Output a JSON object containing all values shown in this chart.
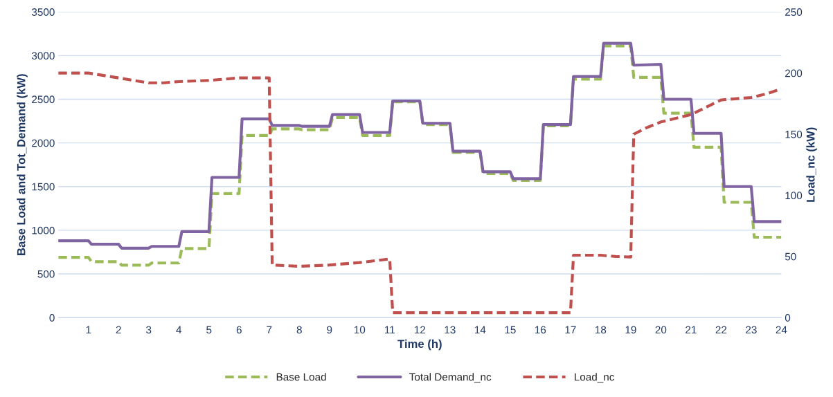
{
  "chart_data": {
    "type": "line",
    "xlabel": "Time (h)",
    "ylabel": "Base Load and Tot_Demand (kW)",
    "y2label": "Load_nc (kW)",
    "xlim": [
      0,
      24
    ],
    "xticks": [
      1,
      2,
      3,
      4,
      5,
      6,
      7,
      8,
      9,
      10,
      11,
      12,
      13,
      14,
      15,
      16,
      17,
      18,
      19,
      20,
      21,
      22,
      23,
      24
    ],
    "ylim": [
      0,
      3500
    ],
    "yticks": [
      0,
      500,
      1000,
      1500,
      2000,
      2500,
      3000,
      3500
    ],
    "y2lim": [
      0,
      250
    ],
    "y2ticks": [
      0,
      50,
      100,
      150,
      200,
      250
    ],
    "grid": "y",
    "legend": "bottom",
    "marker": "none",
    "x": [
      0,
      1,
      1.1,
      2,
      2.1,
      3,
      3.1,
      4,
      4.1,
      5,
      5.1,
      6,
      6.1,
      7,
      7.1,
      8,
      8.1,
      9,
      9.1,
      10,
      10.1,
      11,
      11.1,
      12,
      12.1,
      13,
      13.1,
      14,
      14.1,
      15,
      15.1,
      16,
      16.1,
      17,
      17.1,
      18,
      18.1,
      19,
      19.1,
      20,
      20.1,
      21,
      21.1,
      22,
      22.1,
      23,
      23.1,
      24
    ],
    "series": [
      {
        "name": "Base Load",
        "color": "#9bbb59",
        "line_style": "dashed",
        "values": [
          690,
          690,
          640,
          640,
          600,
          600,
          625,
          625,
          790,
          790,
          1420,
          1420,
          2085,
          2085,
          2160,
          2160,
          2150,
          2150,
          2290,
          2290,
          2085,
          2085,
          2470,
          2470,
          2210,
          2210,
          1890,
          1890,
          1650,
          1650,
          1570,
          1570,
          2195,
          2195,
          2730,
          2730,
          3110,
          3110,
          2750,
          2750,
          2340,
          2340,
          1950,
          1950,
          1320,
          1320,
          920,
          920
        ]
      },
      {
        "name": "Total Demand_nc",
        "color": "#8064a2",
        "line_style": "solid",
        "values": [
          880,
          880,
          840,
          840,
          795,
          795,
          815,
          815,
          985,
          985,
          1605,
          1605,
          2275,
          2275,
          2200,
          2200,
          2190,
          2190,
          2325,
          2325,
          2120,
          2120,
          2480,
          2480,
          2225,
          2225,
          1905,
          1905,
          1670,
          1670,
          1590,
          1590,
          2210,
          2210,
          2760,
          2760,
          3140,
          3140,
          2890,
          2900,
          2500,
          2500,
          2110,
          2110,
          1500,
          1500,
          1100,
          1100
        ]
      },
      {
        "name": "Load_nc",
        "color": "#c0504d",
        "line_style": "dashed",
        "axis": "y2",
        "x": [
          0,
          1,
          1.5,
          2,
          2.5,
          3,
          3.5,
          4,
          5,
          6,
          7,
          7.1,
          8,
          9,
          10,
          11,
          11.1,
          12,
          13,
          14,
          15,
          16,
          17,
          17.1,
          18,
          18.5,
          19,
          19.1,
          19.5,
          20,
          20.5,
          21,
          21.5,
          22,
          23,
          23.5,
          24
        ],
        "values": [
          200,
          200,
          198,
          196,
          194,
          192,
          192,
          193,
          194,
          196,
          196,
          43,
          42,
          43,
          45,
          48,
          4,
          4,
          4,
          4,
          4,
          4,
          4,
          51,
          51,
          50,
          49.5,
          150,
          155,
          160,
          163,
          166,
          172,
          178,
          180,
          183,
          187
        ]
      }
    ]
  }
}
